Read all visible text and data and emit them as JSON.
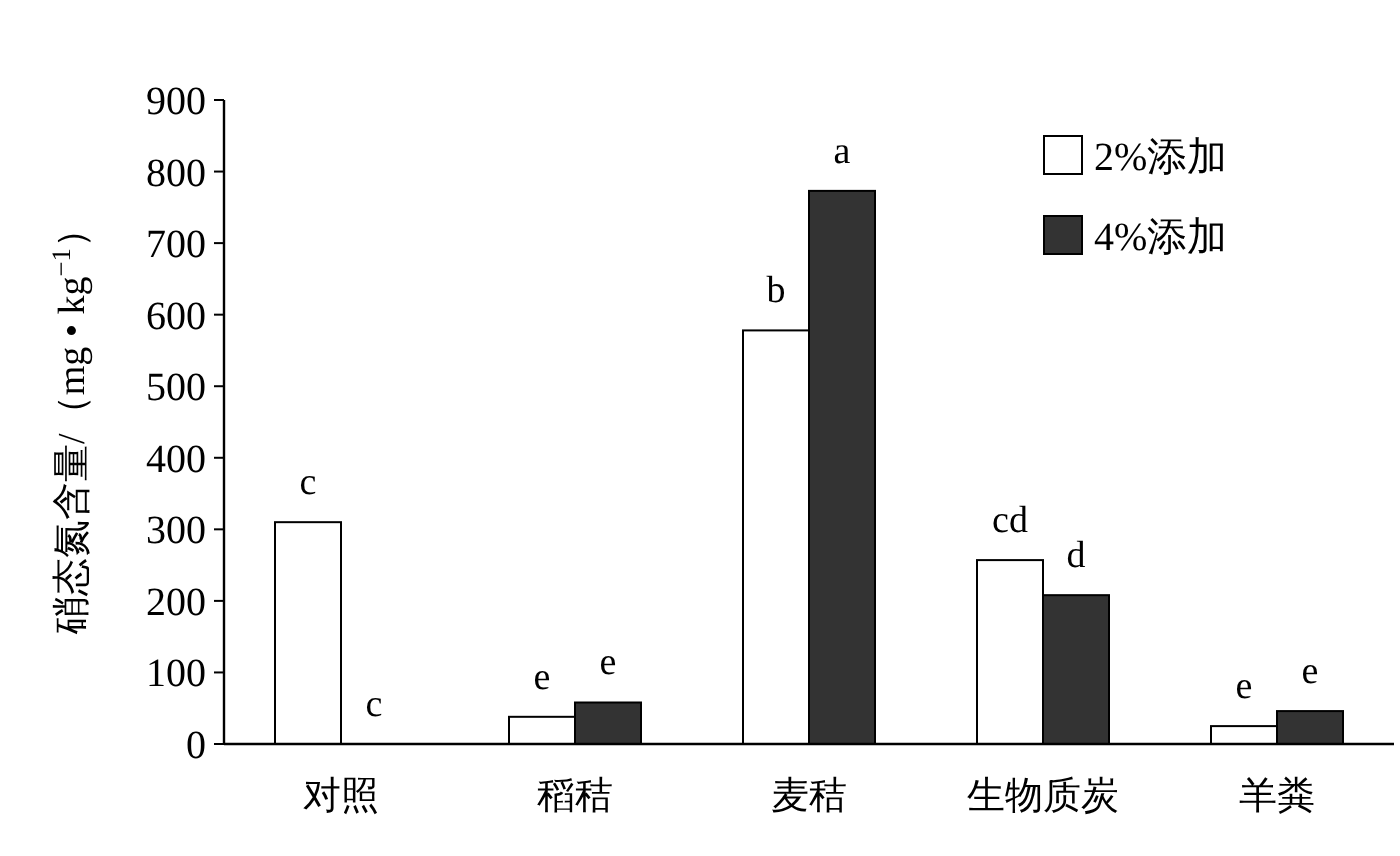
{
  "chart_data": {
    "type": "bar",
    "ylabel": "硝态氮含量/（mg • kg$^{−1}$）",
    "categories": [
      "对照",
      "稻秸",
      "麦秸",
      "生物质炭",
      "羊粪"
    ],
    "series": [
      {
        "name": "2%添加",
        "color": "#ffffff",
        "values": [
          310,
          38,
          578,
          257,
          25
        ]
      },
      {
        "name": "4%添加",
        "color": "#333333",
        "values": [
          0,
          58,
          773,
          208,
          46
        ]
      }
    ],
    "ylim": [
      0,
      900
    ],
    "yticks": [
      0,
      100,
      200,
      300,
      400,
      500,
      600,
      700,
      800,
      900
    ],
    "legend": "top right",
    "annotations": [
      {
        "text": "c",
        "x": "对照",
        "y": 310
      },
      {
        "text": "c",
        "x": "对照",
        "y": 0
      },
      {
        "text": "e",
        "x": "稻秸",
        "y": 38
      },
      {
        "text": "e",
        "x": "稻秸",
        "y": 58
      },
      {
        "text": "b",
        "x": "麦秸",
        "y": 578
      },
      {
        "text": "a",
        "x": "麦秸",
        "y": 773
      },
      {
        "text": "cd",
        "x": "生物质炭",
        "y": 257
      },
      {
        "text": "d",
        "x": "生物质炭",
        "y": 208
      },
      {
        "text": "e",
        "x": "羊粪",
        "y": 25
      },
      {
        "text": "e",
        "x": "羊粪",
        "y": 46
      }
    ]
  }
}
